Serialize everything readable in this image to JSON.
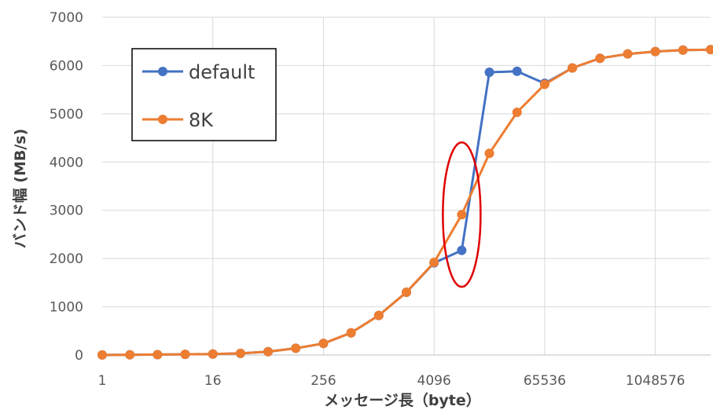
{
  "chart_data": {
    "type": "line",
    "xlabel": "メッセージ長（byte）",
    "ylabel": "バンド幅 (MB/s)",
    "x_scale": "log2",
    "xlim": [
      1,
      4194304
    ],
    "ylim": [
      0,
      7000
    ],
    "x_ticks": [
      1,
      16,
      256,
      4096,
      65536,
      1048576
    ],
    "x_tick_labels": [
      "1",
      "16",
      "256",
      "4096",
      "65536",
      "1048576"
    ],
    "y_ticks": [
      0,
      1000,
      2000,
      3000,
      4000,
      5000,
      6000,
      7000
    ],
    "grid": true,
    "legend_position": "top-left",
    "x": [
      1,
      2,
      4,
      8,
      16,
      32,
      64,
      128,
      256,
      512,
      1024,
      2048,
      4096,
      8192,
      16384,
      32768,
      65536,
      131072,
      262144,
      524288,
      1048576,
      2097152,
      4194304
    ],
    "series": [
      {
        "name": "default",
        "color": "#4472C4",
        "values": [
          2,
          5,
          9,
          15,
          20,
          35,
          70,
          140,
          240,
          460,
          820,
          1300,
          1910,
          2170,
          5860,
          5880,
          5630,
          5950,
          6150,
          6240,
          6290,
          6320,
          6330
        ]
      },
      {
        "name": "8K",
        "color": "#ED7D31",
        "values": [
          2,
          5,
          9,
          15,
          20,
          35,
          70,
          140,
          240,
          460,
          820,
          1300,
          1920,
          2910,
          4180,
          5030,
          5610,
          5950,
          6150,
          6240,
          6290,
          6320,
          6330
        ]
      }
    ],
    "annotation": {
      "shape": "ellipse",
      "color": "#E00000",
      "center": {
        "x": 8192,
        "y": 2910
      }
    }
  }
}
